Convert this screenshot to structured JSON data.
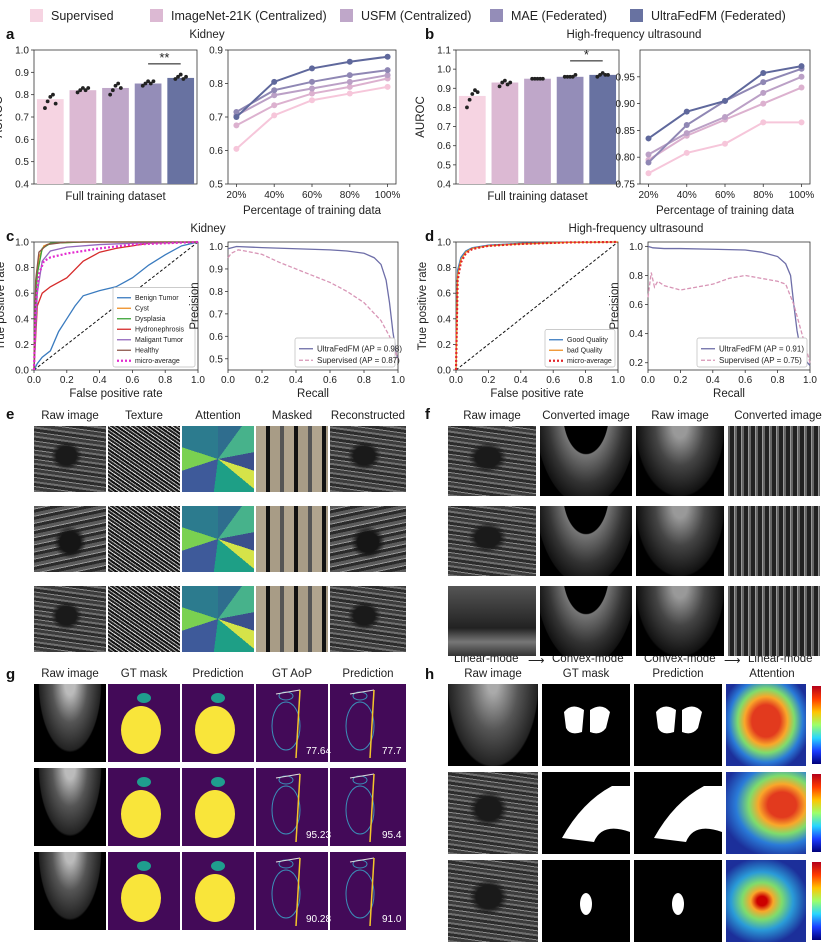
{
  "legend": [
    {
      "label": "Supervised",
      "color": "#f6d4e2"
    },
    {
      "label": "ImageNet-21K (Centralized)",
      "color": "#dcb9d3"
    },
    {
      "label": "USFM (Centralized)",
      "color": "#bfa7c9"
    },
    {
      "label": "MAE (Federated)",
      "color": "#948db8"
    },
    {
      "label": "UltraFedFM (Federated)",
      "color": "#6872a1"
    }
  ],
  "panel_labels": {
    "a": "a",
    "b": "b",
    "c": "c",
    "d": "d",
    "e": "e",
    "f": "f",
    "g": "g",
    "h": "h"
  },
  "chart_data": [
    {
      "id": "a-bar",
      "type": "bar",
      "title": "Kidney",
      "xlabel": "Full training dataset",
      "ylabel": "AUROC",
      "ylim": [
        0.4,
        1.0
      ],
      "yticks": [
        "0.4",
        "0.5",
        "0.6",
        "0.7",
        "0.8",
        "0.9",
        "1.0"
      ],
      "categories": [
        "Supervised",
        "ImageNet-21K (Centralized)",
        "USFM (Centralized)",
        "MAE (Federated)",
        "UltraFedFM (Federated)"
      ],
      "values": [
        0.78,
        0.82,
        0.83,
        0.85,
        0.875
      ],
      "points": [
        [
          0.74,
          0.77,
          0.79,
          0.8,
          0.76
        ],
        [
          0.81,
          0.82,
          0.83,
          0.82,
          0.83
        ],
        [
          0.8,
          0.82,
          0.84,
          0.85,
          0.83
        ],
        [
          0.84,
          0.85,
          0.86,
          0.85,
          0.86
        ],
        [
          0.87,
          0.88,
          0.89,
          0.87,
          0.88
        ]
      ],
      "annotation": "**"
    },
    {
      "id": "a-line",
      "type": "line",
      "xlabel": "Percentage of training data",
      "ylabel": "",
      "ylim": [
        0.5,
        0.9
      ],
      "yticks": [
        "0.5",
        "0.6",
        "0.7",
        "0.8",
        "0.9"
      ],
      "categories": [
        "20%",
        "40%",
        "60%",
        "80%",
        "100%"
      ],
      "series": [
        {
          "name": "Supervised",
          "values": [
            0.605,
            0.705,
            0.75,
            0.77,
            0.79
          ]
        },
        {
          "name": "ImageNet-21K (Centralized)",
          "values": [
            0.675,
            0.735,
            0.77,
            0.79,
            0.815
          ]
        },
        {
          "name": "USFM (Centralized)",
          "values": [
            0.705,
            0.765,
            0.785,
            0.805,
            0.825
          ]
        },
        {
          "name": "MAE (Federated)",
          "values": [
            0.715,
            0.78,
            0.805,
            0.825,
            0.84
          ]
        },
        {
          "name": "UltraFedFM (Federated)",
          "values": [
            0.7,
            0.805,
            0.845,
            0.865,
            0.88
          ]
        }
      ]
    },
    {
      "id": "b-bar",
      "type": "bar",
      "title": "High-frequency ultrasound",
      "xlabel": "Full training dataset",
      "ylabel": "AUROC",
      "ylim": [
        0.4,
        1.1
      ],
      "yticks": [
        "0.4",
        "0.5",
        "0.6",
        "0.7",
        "0.8",
        "0.9",
        "1.0",
        "1.1"
      ],
      "categories": [
        "Supervised",
        "ImageNet-21K (Centralized)",
        "USFM (Centralized)",
        "MAE (Federated)",
        "UltraFedFM (Federated)"
      ],
      "values": [
        0.86,
        0.93,
        0.95,
        0.96,
        0.97
      ],
      "points": [
        [
          0.8,
          0.84,
          0.87,
          0.89,
          0.88
        ],
        [
          0.91,
          0.93,
          0.94,
          0.92,
          0.93
        ],
        [
          0.95,
          0.95,
          0.95,
          0.95,
          0.95
        ],
        [
          0.96,
          0.96,
          0.96,
          0.96,
          0.97
        ],
        [
          0.96,
          0.97,
          0.98,
          0.97,
          0.97
        ]
      ],
      "annotation": "*"
    },
    {
      "id": "b-line",
      "type": "line",
      "xlabel": "Percentage of training data",
      "ylabel": "",
      "ylim": [
        0.75,
        1.0
      ],
      "yticks": [
        "0.75",
        "0.80",
        "0.85",
        "0.90",
        "0.95"
      ],
      "categories": [
        "20%",
        "40%",
        "60%",
        "80%",
        "100%"
      ],
      "series": [
        {
          "name": "Supervised",
          "values": [
            0.77,
            0.808,
            0.825,
            0.865,
            0.865
          ]
        },
        {
          "name": "ImageNet-21K (Centralized)",
          "values": [
            0.795,
            0.84,
            0.87,
            0.9,
            0.93
          ]
        },
        {
          "name": "USFM (Centralized)",
          "values": [
            0.805,
            0.845,
            0.875,
            0.92,
            0.95
          ]
        },
        {
          "name": "MAE (Federated)",
          "values": [
            0.79,
            0.86,
            0.905,
            0.94,
            0.965
          ]
        },
        {
          "name": "UltraFedFM (Federated)",
          "values": [
            0.835,
            0.885,
            0.905,
            0.957,
            0.97
          ]
        }
      ]
    },
    {
      "id": "c-roc",
      "type": "line",
      "title": "Kidney",
      "xlabel": "False positive rate",
      "ylabel": "True positive rate",
      "xlim": [
        0,
        1
      ],
      "ylim": [
        0,
        1
      ],
      "xticks": [
        "0.0",
        "0.2",
        "0.4",
        "0.6",
        "0.8",
        "1.0"
      ],
      "yticks": [
        "0.0",
        "0.2",
        "0.4",
        "0.6",
        "0.8",
        "1.0"
      ],
      "series": [
        {
          "name": "Benign Tumor",
          "color": "#3a7bbf",
          "x": [
            0,
            0.02,
            0.05,
            0.1,
            0.15,
            0.2,
            0.25,
            0.3,
            0.4,
            0.5,
            0.6,
            0.7,
            0.8,
            0.9,
            1
          ],
          "y": [
            0,
            0.05,
            0.1,
            0.15,
            0.3,
            0.4,
            0.5,
            0.58,
            0.62,
            0.65,
            0.72,
            0.82,
            0.9,
            0.97,
            1
          ]
        },
        {
          "name": "Cyst",
          "color": "#ef8f24",
          "x": [
            0,
            0.01,
            0.03,
            0.06,
            0.1,
            0.3,
            0.6,
            1
          ],
          "y": [
            0,
            0.6,
            0.88,
            0.97,
            0.99,
            1,
            1,
            1
          ]
        },
        {
          "name": "Dysplasia",
          "color": "#3aa336",
          "x": [
            0,
            0.01,
            0.02,
            0.05,
            0.1,
            0.3,
            1
          ],
          "y": [
            0,
            0.5,
            0.75,
            0.95,
            0.99,
            1,
            1
          ]
        },
        {
          "name": "Hydronephrosis",
          "color": "#d62b2b",
          "x": [
            0,
            0.02,
            0.05,
            0.1,
            0.2,
            0.3,
            0.4,
            0.5,
            0.6,
            0.7,
            1
          ],
          "y": [
            0,
            0.5,
            0.6,
            0.65,
            0.72,
            0.85,
            0.92,
            0.95,
            0.97,
            0.99,
            1
          ]
        },
        {
          "name": "Maligant Tumor",
          "color": "#9468bd",
          "x": [
            0,
            0.02,
            0.05,
            0.1,
            0.2,
            0.4,
            0.6,
            1
          ],
          "y": [
            0,
            0.6,
            0.85,
            0.93,
            0.96,
            0.98,
            0.99,
            1
          ]
        },
        {
          "name": "Healthy",
          "color": "#8c564b",
          "x": [
            0,
            0.01,
            0.03,
            0.08,
            0.2,
            1
          ],
          "y": [
            0,
            0.7,
            0.92,
            0.98,
            1,
            1
          ]
        },
        {
          "name": "micro-average",
          "color": "#e32bd0",
          "x": [
            0,
            0.01,
            0.03,
            0.06,
            0.1,
            0.2,
            0.4,
            0.6,
            0.8,
            1
          ],
          "y": [
            0,
            0.5,
            0.75,
            0.85,
            0.88,
            0.91,
            0.95,
            0.98,
            0.99,
            1
          ]
        }
      ]
    },
    {
      "id": "c-pr",
      "type": "line",
      "xlabel": "Recall",
      "ylabel": "Precision",
      "xlim": [
        0,
        1
      ],
      "ylim": [
        0.45,
        1.02
      ],
      "xticks": [
        "0.0",
        "0.2",
        "0.4",
        "0.6",
        "0.8",
        "1.0"
      ],
      "yticks": [
        "0.5",
        "0.6",
        "0.7",
        "0.8",
        "0.9",
        "1.0"
      ],
      "series": [
        {
          "name": "UltraFedFM (AP = 0.98)",
          "color": "#6e6ea8",
          "x": [
            0,
            0.05,
            0.2,
            0.4,
            0.6,
            0.7,
            0.8,
            0.86,
            0.9,
            0.93,
            0.95,
            0.97,
            0.99,
            1
          ],
          "y": [
            0.99,
            1,
            0.995,
            0.99,
            0.985,
            0.98,
            0.97,
            0.95,
            0.92,
            0.85,
            0.75,
            0.62,
            0.52,
            0.5
          ]
        },
        {
          "name": "Supervised (AP = 0.87)",
          "color": "#d895b6",
          "x": [
            0,
            0.02,
            0.06,
            0.1,
            0.2,
            0.3,
            0.4,
            0.5,
            0.6,
            0.7,
            0.8,
            0.9,
            0.95,
            1
          ],
          "y": [
            0.95,
            0.97,
            0.985,
            0.98,
            0.965,
            0.93,
            0.9,
            0.87,
            0.84,
            0.8,
            0.75,
            0.67,
            0.6,
            0.5
          ]
        }
      ]
    },
    {
      "id": "d-roc",
      "type": "line",
      "title": "High-frequency ultrasound",
      "xlabel": "False positive rate",
      "ylabel": "True positive rate",
      "xlim": [
        0,
        1
      ],
      "ylim": [
        0,
        1
      ],
      "xticks": [
        "0.0",
        "0.2",
        "0.4",
        "0.6",
        "0.8",
        "1.0"
      ],
      "yticks": [
        "0.0",
        "0.2",
        "0.4",
        "0.6",
        "0.8",
        "1.0"
      ],
      "series": [
        {
          "name": "Good Quality",
          "color": "#3a7bbf",
          "x": [
            0,
            0.01,
            0.03,
            0.06,
            0.1,
            0.2,
            0.4,
            0.7,
            1
          ],
          "y": [
            0,
            0.78,
            0.88,
            0.93,
            0.955,
            0.975,
            0.99,
            0.998,
            1
          ]
        },
        {
          "name": "bad Quality",
          "color": "#ef8f24",
          "x": [
            0,
            0.01,
            0.03,
            0.06,
            0.1,
            0.2,
            0.4,
            0.7,
            1
          ],
          "y": [
            0,
            0.74,
            0.86,
            0.92,
            0.95,
            0.97,
            0.985,
            0.997,
            1
          ]
        },
        {
          "name": "micro-average",
          "color": "#e3252a",
          "x": [
            0,
            0.01,
            0.03,
            0.06,
            0.1,
            0.2,
            0.4,
            0.7,
            1
          ],
          "y": [
            0,
            0.7,
            0.84,
            0.91,
            0.945,
            0.97,
            0.985,
            0.997,
            1
          ]
        }
      ]
    },
    {
      "id": "d-pr",
      "type": "line",
      "xlabel": "Recall",
      "ylabel": "Precision",
      "xlim": [
        0,
        1
      ],
      "ylim": [
        0.15,
        1.03
      ],
      "xticks": [
        "0.0",
        "0.2",
        "0.4",
        "0.6",
        "0.8",
        "1.0"
      ],
      "yticks": [
        "0.2",
        "0.4",
        "0.6",
        "0.8",
        "1.0"
      ],
      "series": [
        {
          "name": "UltraFedFM (AP = 0.91)",
          "color": "#6e6ea8",
          "x": [
            0,
            0.03,
            0.1,
            0.2,
            0.4,
            0.6,
            0.7,
            0.8,
            0.85,
            0.88,
            0.9,
            0.92,
            0.94,
            0.97,
            1
          ],
          "y": [
            1,
            0.99,
            0.985,
            0.985,
            0.98,
            0.975,
            0.96,
            0.93,
            0.88,
            0.8,
            0.6,
            0.42,
            0.3,
            0.22,
            0.18
          ]
        },
        {
          "name": "Supervised (AP = 0.75)",
          "color": "#d895b6",
          "x": [
            0,
            0.02,
            0.04,
            0.06,
            0.1,
            0.2,
            0.3,
            0.4,
            0.5,
            0.6,
            0.7,
            0.8,
            0.85,
            0.9,
            0.95,
            1
          ],
          "y": [
            0.65,
            0.82,
            0.72,
            0.76,
            0.73,
            0.7,
            0.72,
            0.74,
            0.78,
            0.8,
            0.78,
            0.76,
            0.74,
            0.6,
            0.4,
            0.2
          ]
        }
      ]
    }
  ],
  "panel_e": {
    "columns": [
      "Raw image",
      "Texture",
      "Attention",
      "Masked",
      "Reconstructed"
    ]
  },
  "panel_f": {
    "columns": [
      "Raw image",
      "Converted image",
      "Raw image",
      "Converted image"
    ],
    "bottom": [
      "Linear-mode",
      "Convex-mode",
      "Convex-mode",
      "Linear-mode"
    ],
    "arrow": "⟶"
  },
  "panel_g": {
    "columns": [
      "Raw image",
      "GT mask",
      "Prediction",
      "GT AoP",
      "Prediction"
    ],
    "aop_values": [
      [
        "77.64",
        "77.7"
      ],
      [
        "95.23",
        "95.4"
      ],
      [
        "90.28",
        "91.0"
      ]
    ]
  },
  "panel_h": {
    "columns": [
      "Raw image",
      "GT mask",
      "Prediction",
      "Attention"
    ]
  }
}
